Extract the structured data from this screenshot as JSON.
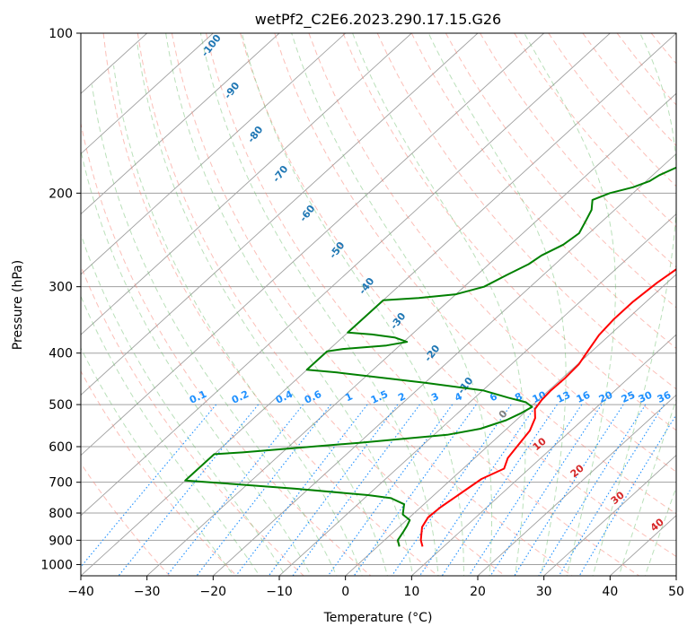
{
  "chart_data": {
    "type": "line",
    "subtype": "skew-t log-p diagram",
    "title": "wetPf2_C2E6.2023.290.17.15.G26",
    "xlabel": "Temperature (°C)",
    "ylabel": "Pressure (hPa)",
    "xlim": [
      -40,
      50
    ],
    "ylim": [
      1050,
      100
    ],
    "y_scale": "log",
    "grid": true,
    "x_ticks": [
      -40,
      -30,
      -20,
      -10,
      0,
      10,
      20,
      30,
      40,
      50
    ],
    "y_ticks": [
      100,
      200,
      300,
      400,
      500,
      600,
      700,
      800,
      900,
      1000
    ],
    "colors": {
      "temperature": "#ff0000",
      "dewpoint": "#008000",
      "isotherm": "#a0a0a0",
      "dry_adiabat": "#fa8072",
      "moist_adiabat": "#66bb66",
      "mixing_ratio": "#1e90ff",
      "dry_adiabat_label": "#d62728",
      "moist_adiabat_label": "#1f77b4",
      "zero_label": "#808080"
    },
    "series": [
      {
        "kind": "temperature",
        "points": [
          [
            6.8,
            925
          ],
          [
            5.5,
            900
          ],
          [
            3.5,
            850
          ],
          [
            2.8,
            815
          ],
          [
            3.0,
            780
          ],
          [
            3.8,
            730
          ],
          [
            4.5,
            690
          ],
          [
            6.2,
            660
          ],
          [
            5.0,
            630
          ],
          [
            4.5,
            600
          ],
          [
            3.8,
            560
          ],
          [
            2.5,
            530
          ],
          [
            1.0,
            510
          ],
          [
            0.5,
            490
          ],
          [
            0.3,
            470
          ],
          [
            0.4,
            445
          ],
          [
            0.2,
            420
          ],
          [
            -0.7,
            395
          ],
          [
            -1.6,
            370
          ],
          [
            -2.0,
            345
          ],
          [
            -2.0,
            320
          ],
          [
            -1.5,
            295
          ],
          [
            -0.5,
            270
          ],
          [
            1.5,
            245
          ],
          [
            4.0,
            225
          ],
          [
            6.5,
            210
          ],
          [
            9.5,
            195
          ],
          [
            11.5,
            185
          ],
          [
            14.0,
            172
          ],
          [
            16.5,
            160
          ],
          [
            18.5,
            150
          ],
          [
            20.5,
            140
          ],
          [
            23.5,
            130
          ],
          [
            27.0,
            122
          ],
          [
            28.0,
            116
          ],
          [
            29.0,
            110
          ],
          [
            30.0,
            104
          ],
          [
            30.8,
            100
          ]
        ]
      },
      {
        "kind": "dewpoint",
        "points": [
          [
            3.3,
            925
          ],
          [
            2.0,
            900
          ],
          [
            1.5,
            870
          ],
          [
            1.0,
            845
          ],
          [
            0.5,
            825
          ],
          [
            -1.5,
            805
          ],
          [
            -3.0,
            770
          ],
          [
            -6.0,
            750
          ],
          [
            -10.0,
            740
          ],
          [
            -22.0,
            720
          ],
          [
            -36.0,
            700
          ],
          [
            -40.0,
            695
          ],
          [
            -40.0,
            620
          ],
          [
            -36.0,
            615
          ],
          [
            -20.0,
            590
          ],
          [
            -8.0,
            570
          ],
          [
            -4.0,
            555
          ],
          [
            -1.5,
            535
          ],
          [
            -0.5,
            520
          ],
          [
            0.2,
            505
          ],
          [
            -1.5,
            495
          ],
          [
            -5.0,
            485
          ],
          [
            -10.0,
            470
          ],
          [
            -20.0,
            455
          ],
          [
            -35.0,
            435
          ],
          [
            -40.0,
            430
          ],
          [
            -40.0,
            397
          ],
          [
            -38.0,
            393
          ],
          [
            -32.0,
            387
          ],
          [
            -29.5,
            381
          ],
          [
            -32.0,
            374
          ],
          [
            -36.0,
            369
          ],
          [
            -40.0,
            366
          ],
          [
            -40.0,
            318
          ],
          [
            -35.0,
            315
          ],
          [
            -30.0,
            310
          ],
          [
            -27.0,
            300
          ],
          [
            -25.5,
            285
          ],
          [
            -24.0,
            272
          ],
          [
            -23.5,
            262
          ],
          [
            -22.0,
            250
          ],
          [
            -21.5,
            238
          ],
          [
            -22.5,
            226
          ],
          [
            -23.5,
            215
          ],
          [
            -25.0,
            206
          ],
          [
            -23.5,
            200
          ],
          [
            -21.0,
            195
          ],
          [
            -19.5,
            190
          ],
          [
            -19.0,
            185
          ],
          [
            -17.5,
            178
          ],
          [
            -16.0,
            171
          ],
          [
            -14.0,
            168
          ],
          [
            -11.0,
            164
          ],
          [
            -9.0,
            158
          ],
          [
            -8.5,
            150
          ],
          [
            -8.0,
            140
          ],
          [
            -7.0,
            130
          ],
          [
            -4.0,
            120
          ],
          [
            -1.0,
            110
          ],
          [
            2.0,
            100
          ]
        ]
      }
    ],
    "dry_adiabat_labels": [
      "10",
      "20",
      "30",
      "40"
    ],
    "moist_adiabat_labels": [
      "-100",
      "-90",
      "-80",
      "-70",
      "-60",
      "-50",
      "-40",
      "-30",
      "-20",
      "-10",
      "0"
    ],
    "mixing_ratio_labels": [
      "0.1",
      "0.2",
      "0.4",
      "0.6",
      "1",
      "1.5",
      "2",
      "3",
      "4",
      "6",
      "8",
      "10",
      "13",
      "16",
      "20",
      "25",
      "30",
      "36"
    ]
  }
}
